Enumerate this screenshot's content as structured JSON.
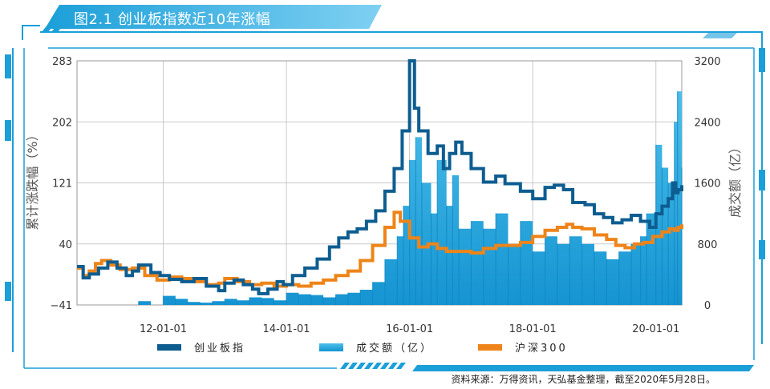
{
  "title": "图2.1 创业板指数近10年涨幅",
  "source": "资料来源：万得资讯，天弘基金整理，截至2020年5月28日。",
  "colors": {
    "gem": "#0d5d90",
    "turnover": "#29a9e0",
    "hs300": "#ee8419",
    "accent": "#1b9fd8"
  },
  "chart_data": {
    "type": "line+bar",
    "y_left": {
      "label": "累计涨跌幅（%）",
      "ticks": [
        "283",
        "202",
        "121",
        "40",
        "−41"
      ],
      "range": [
        -41,
        283
      ]
    },
    "y_right": {
      "label": "成交额（亿）",
      "ticks": [
        "3200",
        "2400",
        "1600",
        "800",
        "0"
      ],
      "range": [
        0,
        3200
      ]
    },
    "x": {
      "ticks": [
        "12-01-01",
        "14-01-01",
        "16-01-01",
        "18-01-01",
        "20-01-01"
      ],
      "tick_years": [
        2012,
        2014,
        2016,
        2018,
        2020
      ],
      "range": [
        2010.6,
        2020.42
      ]
    },
    "legend": [
      "创业板指",
      "成交额（亿）",
      "沪深300"
    ],
    "series": [
      {
        "name": "创业板指",
        "axis": "left",
        "points": [
          [
            2010.6,
            10
          ],
          [
            2010.7,
            -5
          ],
          [
            2010.8,
            0
          ],
          [
            2010.95,
            8
          ],
          [
            2011.1,
            16
          ],
          [
            2011.25,
            8
          ],
          [
            2011.4,
            -2
          ],
          [
            2011.5,
            4
          ],
          [
            2011.6,
            12
          ],
          [
            2011.8,
            2
          ],
          [
            2011.95,
            -2
          ],
          [
            2012.1,
            -7
          ],
          [
            2012.3,
            -10
          ],
          [
            2012.5,
            -6
          ],
          [
            2012.7,
            -16
          ],
          [
            2012.9,
            -22
          ],
          [
            2013.0,
            -12
          ],
          [
            2013.15,
            -8
          ],
          [
            2013.3,
            -14
          ],
          [
            2013.45,
            -20
          ],
          [
            2013.55,
            -26
          ],
          [
            2013.7,
            -20
          ],
          [
            2013.85,
            -10
          ],
          [
            2013.95,
            -14
          ],
          [
            2014.1,
            -2
          ],
          [
            2014.3,
            8
          ],
          [
            2014.5,
            20
          ],
          [
            2014.7,
            36
          ],
          [
            2014.85,
            48
          ],
          [
            2015.0,
            56
          ],
          [
            2015.15,
            60
          ],
          [
            2015.3,
            70
          ],
          [
            2015.45,
            84
          ],
          [
            2015.6,
            110
          ],
          [
            2015.75,
            140
          ],
          [
            2015.88,
            190
          ],
          [
            2016.0,
            283
          ],
          [
            2016.08,
            220
          ],
          [
            2016.15,
            190
          ],
          [
            2016.3,
            160
          ],
          [
            2016.45,
            170
          ],
          [
            2016.55,
            140
          ],
          [
            2016.65,
            160
          ],
          [
            2016.75,
            175
          ],
          [
            2016.85,
            160
          ],
          [
            2017.0,
            140
          ],
          [
            2017.2,
            122
          ],
          [
            2017.4,
            130
          ],
          [
            2017.55,
            120
          ],
          [
            2017.8,
            110
          ],
          [
            2018.0,
            100
          ],
          [
            2018.2,
            115
          ],
          [
            2018.35,
            118
          ],
          [
            2018.5,
            112
          ],
          [
            2018.65,
            95
          ],
          [
            2018.85,
            92
          ],
          [
            2019.0,
            80
          ],
          [
            2019.15,
            75
          ],
          [
            2019.3,
            68
          ],
          [
            2019.45,
            72
          ],
          [
            2019.6,
            78
          ],
          [
            2019.75,
            70
          ],
          [
            2019.9,
            62
          ],
          [
            2020.0,
            80
          ],
          [
            2020.1,
            90
          ],
          [
            2020.2,
            100
          ],
          [
            2020.27,
            121
          ],
          [
            2020.32,
            108
          ],
          [
            2020.36,
            112
          ],
          [
            2020.42,
            118
          ]
        ]
      },
      {
        "name": "沪深300",
        "axis": "left",
        "points": [
          [
            2010.6,
            8
          ],
          [
            2010.7,
            -2
          ],
          [
            2010.8,
            4
          ],
          [
            2010.9,
            14
          ],
          [
            2011.0,
            18
          ],
          [
            2011.15,
            12
          ],
          [
            2011.3,
            6
          ],
          [
            2011.5,
            8
          ],
          [
            2011.7,
            -2
          ],
          [
            2011.9,
            -8
          ],
          [
            2012.1,
            -4
          ],
          [
            2012.3,
            -6
          ],
          [
            2012.5,
            -10
          ],
          [
            2012.7,
            -14
          ],
          [
            2012.9,
            -12
          ],
          [
            2013.0,
            -6
          ],
          [
            2013.2,
            -10
          ],
          [
            2013.4,
            -14
          ],
          [
            2013.6,
            -12
          ],
          [
            2013.8,
            -16
          ],
          [
            2014.0,
            -14
          ],
          [
            2014.2,
            -16
          ],
          [
            2014.4,
            -12
          ],
          [
            2014.6,
            -8
          ],
          [
            2014.8,
            -2
          ],
          [
            2015.0,
            4
          ],
          [
            2015.2,
            18
          ],
          [
            2015.4,
            38
          ],
          [
            2015.6,
            62
          ],
          [
            2015.75,
            82
          ],
          [
            2015.85,
            70
          ],
          [
            2016.0,
            48
          ],
          [
            2016.15,
            36
          ],
          [
            2016.3,
            40
          ],
          [
            2016.45,
            34
          ],
          [
            2016.6,
            30
          ],
          [
            2016.8,
            30
          ],
          [
            2017.0,
            28
          ],
          [
            2017.2,
            34
          ],
          [
            2017.4,
            38
          ],
          [
            2017.6,
            38
          ],
          [
            2017.8,
            42
          ],
          [
            2018.0,
            50
          ],
          [
            2018.2,
            58
          ],
          [
            2018.4,
            62
          ],
          [
            2018.55,
            66
          ],
          [
            2018.65,
            62
          ],
          [
            2018.8,
            60
          ],
          [
            2019.0,
            52
          ],
          [
            2019.2,
            46
          ],
          [
            2019.35,
            38
          ],
          [
            2019.5,
            35
          ],
          [
            2019.65,
            40
          ],
          [
            2019.8,
            42
          ],
          [
            2019.95,
            50
          ],
          [
            2020.1,
            56
          ],
          [
            2020.22,
            60
          ],
          [
            2020.3,
            58
          ],
          [
            2020.36,
            62
          ],
          [
            2020.42,
            66
          ]
        ]
      },
      {
        "name": "成交额（亿）",
        "axis": "right",
        "type": "bar",
        "points": [
          [
            2010.6,
            0
          ],
          [
            2011.0,
            0
          ],
          [
            2011.6,
            50
          ],
          [
            2011.8,
            0
          ],
          [
            2012.0,
            120
          ],
          [
            2012.2,
            80
          ],
          [
            2012.4,
            40
          ],
          [
            2012.6,
            30
          ],
          [
            2012.8,
            50
          ],
          [
            2013.0,
            80
          ],
          [
            2013.2,
            60
          ],
          [
            2013.4,
            100
          ],
          [
            2013.6,
            90
          ],
          [
            2013.8,
            60
          ],
          [
            2014.0,
            160
          ],
          [
            2014.2,
            140
          ],
          [
            2014.4,
            130
          ],
          [
            2014.6,
            100
          ],
          [
            2014.8,
            140
          ],
          [
            2015.0,
            160
          ],
          [
            2015.2,
            200
          ],
          [
            2015.4,
            300
          ],
          [
            2015.6,
            600
          ],
          [
            2015.8,
            900
          ],
          [
            2015.9,
            1300
          ],
          [
            2016.0,
            1900
          ],
          [
            2016.1,
            2200
          ],
          [
            2016.2,
            1600
          ],
          [
            2016.35,
            1200
          ],
          [
            2016.45,
            1900
          ],
          [
            2016.6,
            1300
          ],
          [
            2016.7,
            1700
          ],
          [
            2016.8,
            1000
          ],
          [
            2017.0,
            1100
          ],
          [
            2017.2,
            1000
          ],
          [
            2017.4,
            1200
          ],
          [
            2017.6,
            800
          ],
          [
            2017.8,
            1100
          ],
          [
            2018.0,
            700
          ],
          [
            2018.2,
            900
          ],
          [
            2018.4,
            800
          ],
          [
            2018.6,
            900
          ],
          [
            2018.8,
            800
          ],
          [
            2019.0,
            700
          ],
          [
            2019.2,
            600
          ],
          [
            2019.4,
            700
          ],
          [
            2019.6,
            800
          ],
          [
            2019.75,
            900
          ],
          [
            2019.85,
            1200
          ],
          [
            2020.0,
            2100
          ],
          [
            2020.1,
            1800
          ],
          [
            2020.2,
            1600
          ],
          [
            2020.3,
            2400
          ],
          [
            2020.35,
            2800
          ],
          [
            2020.42,
            1800
          ]
        ]
      }
    ]
  }
}
